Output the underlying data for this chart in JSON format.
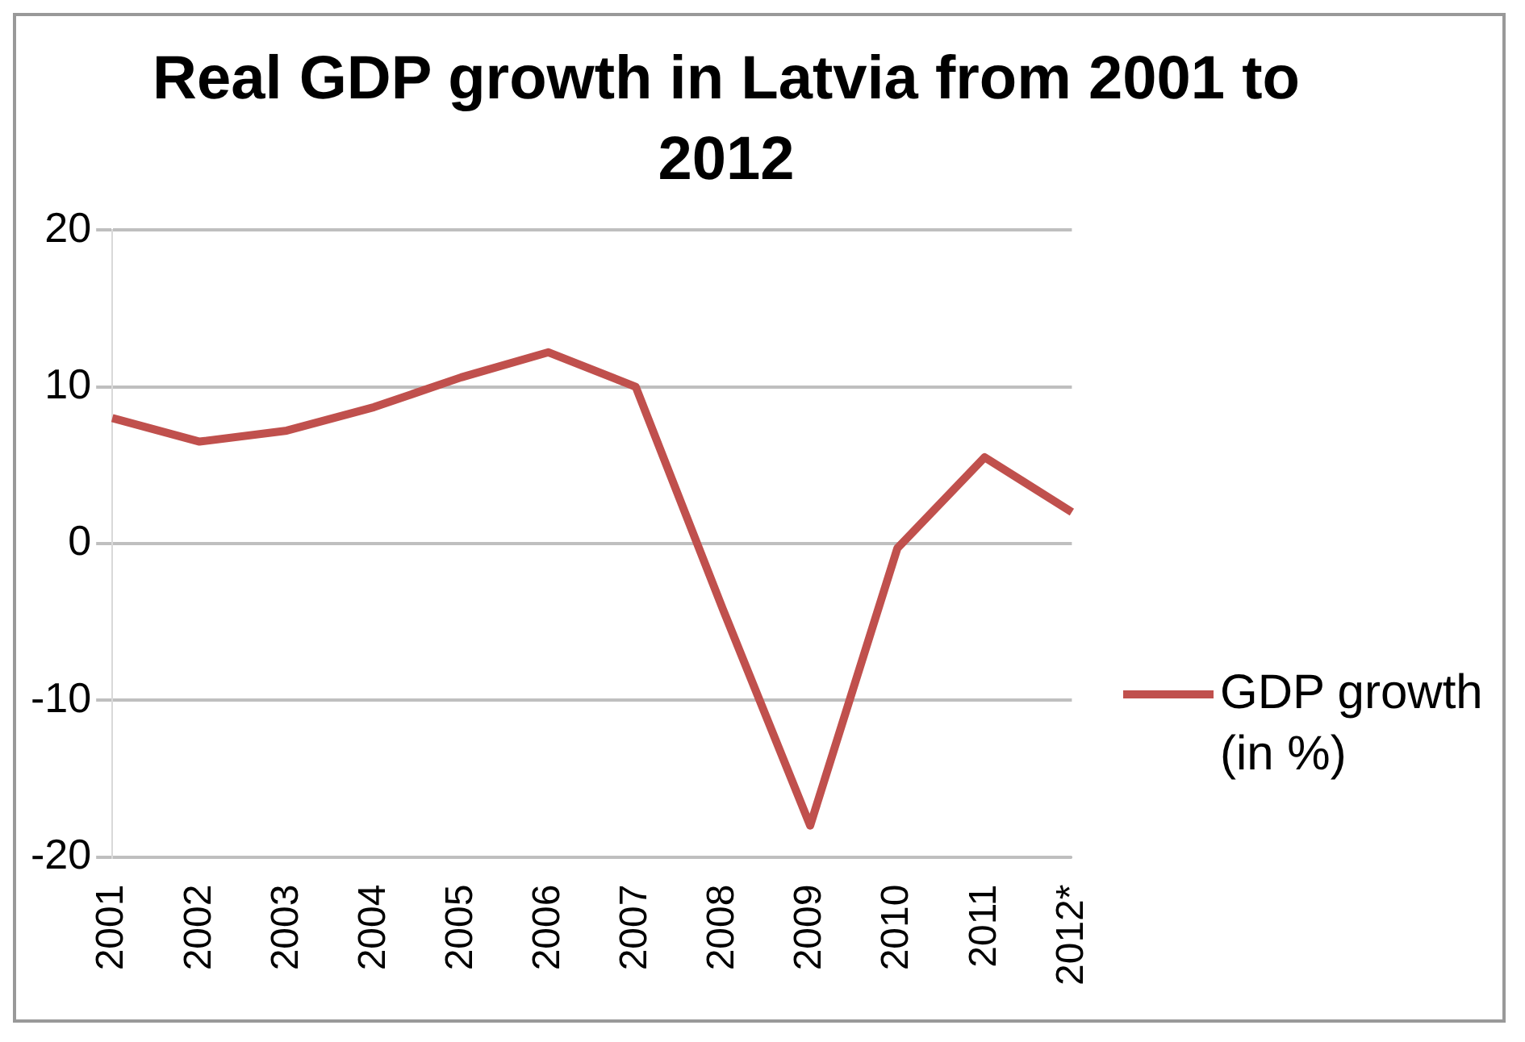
{
  "chart_data": {
    "type": "line",
    "title": "Real GDP growth in Latvia from 2001 to 2012",
    "categories": [
      "2001",
      "2002",
      "2003",
      "2004",
      "2005",
      "2006",
      "2007",
      "2008",
      "2009",
      "2010",
      "2011",
      "2012*"
    ],
    "series": [
      {
        "name": "GDP growth (in %)",
        "color": "#c0504d",
        "values": [
          8,
          6.5,
          7.2,
          8.7,
          10.6,
          12.2,
          10,
          -4.2,
          -18,
          -0.3,
          5.5,
          2
        ]
      }
    ],
    "ylim": [
      -20,
      20
    ],
    "yticks": [
      -20,
      -10,
      0,
      10,
      20
    ],
    "grid": "y",
    "legend": "right",
    "marker": "none",
    "line_style": "solid"
  }
}
